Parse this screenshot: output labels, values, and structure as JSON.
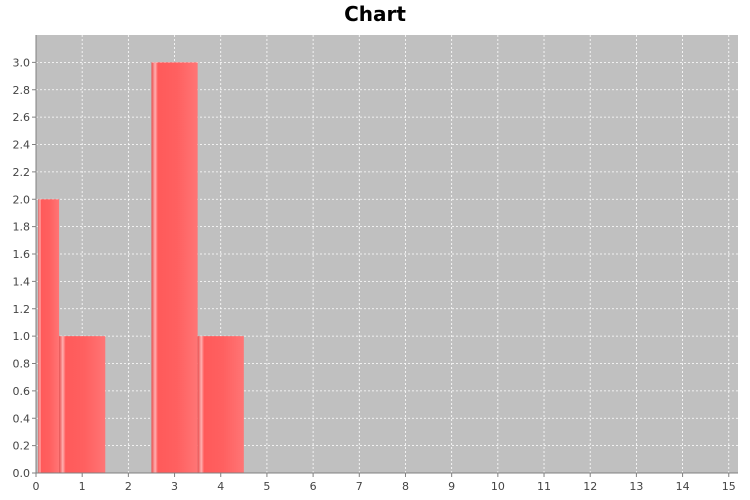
{
  "chart_data": {
    "type": "bar",
    "title": "Chart",
    "xlabel": "",
    "ylabel": "",
    "xlim": [
      0,
      15.2
    ],
    "ylim": [
      0,
      3.2
    ],
    "x_ticks": [
      0,
      1,
      2,
      3,
      4,
      5,
      6,
      7,
      8,
      9,
      10,
      11,
      12,
      13,
      14,
      15
    ],
    "y_ticks": [
      0.0,
      0.2,
      0.4,
      0.6,
      0.8,
      1.0,
      1.2,
      1.4,
      1.6,
      1.8,
      2.0,
      2.2,
      2.4,
      2.6,
      2.8,
      3.0
    ],
    "grid": true,
    "legend": "none",
    "bars": [
      {
        "x_start": 0.05,
        "x_end": 0.5,
        "value": 2
      },
      {
        "x_start": 0.5,
        "x_end": 1.5,
        "value": 1
      },
      {
        "x_start": 2.5,
        "x_end": 3.5,
        "value": 3
      },
      {
        "x_start": 3.5,
        "x_end": 4.5,
        "value": 1
      }
    ],
    "colors": {
      "bar": "#ff5555",
      "plot_background": "#c0c0c0",
      "grid": "#ffffff"
    }
  }
}
